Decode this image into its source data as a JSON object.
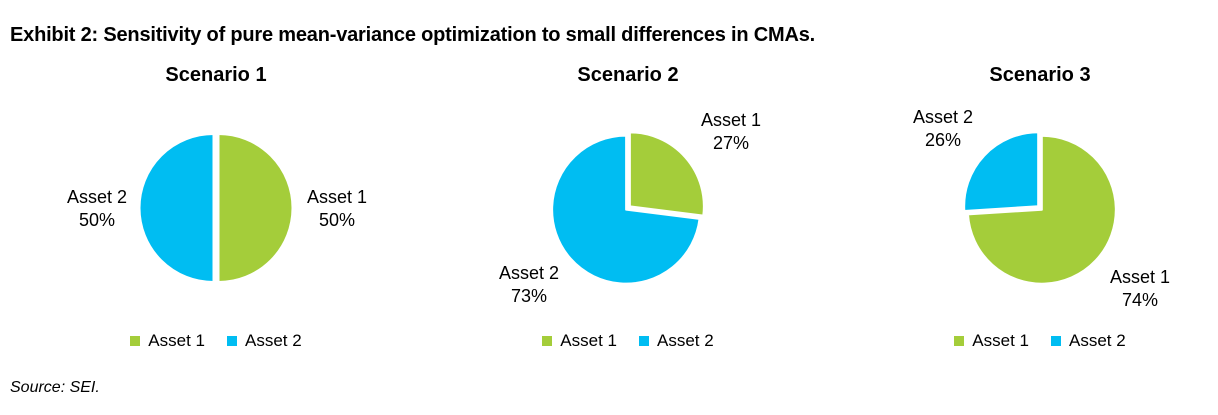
{
  "title": "Exhibit 2: Sensitivity of pure mean-variance optimization to small differences in CMAs.",
  "source": "Source: SEI.",
  "colors": {
    "asset1_green": "#a4cd3a",
    "asset2_blue": "#00bdf2",
    "text": "#000000",
    "background": "#ffffff"
  },
  "chart_data": [
    {
      "type": "pie",
      "title": "Scenario 1",
      "categories": [
        "Asset 1",
        "Asset 2"
      ],
      "values": [
        50,
        50
      ],
      "slice_colors": [
        "#a4cd3a",
        "#00bdf2"
      ],
      "start_angle_deg": 0,
      "direction": "clockwise",
      "legend": [
        "Asset 1",
        "Asset 2"
      ],
      "legend_position": "bottom",
      "callouts": [
        {
          "name": "Asset 1",
          "pct": "50%",
          "position": "right"
        },
        {
          "name": "Asset 2",
          "pct": "50%",
          "position": "left"
        }
      ]
    },
    {
      "type": "pie",
      "title": "Scenario 2",
      "categories": [
        "Asset 1",
        "Asset 2"
      ],
      "values": [
        27,
        73
      ],
      "slice_colors": [
        "#a4cd3a",
        "#00bdf2"
      ],
      "start_angle_deg": 0,
      "direction": "clockwise",
      "legend": [
        "Asset 1",
        "Asset 2"
      ],
      "legend_position": "bottom",
      "callouts": [
        {
          "name": "Asset 1",
          "pct": "27%",
          "position": "top-right"
        },
        {
          "name": "Asset 2",
          "pct": "73%",
          "position": "bottom-left"
        }
      ]
    },
    {
      "type": "pie",
      "title": "Scenario 3",
      "categories": [
        "Asset 1",
        "Asset 2"
      ],
      "values": [
        74,
        26
      ],
      "slice_colors": [
        "#a4cd3a",
        "#00bdf2"
      ],
      "start_angle_deg": 0,
      "direction": "clockwise",
      "legend": [
        "Asset 1",
        "Asset 2"
      ],
      "legend_position": "bottom",
      "callouts": [
        {
          "name": "Asset 1",
          "pct": "74%",
          "position": "bottom-right"
        },
        {
          "name": "Asset 2",
          "pct": "26%",
          "position": "top-left"
        }
      ]
    }
  ]
}
